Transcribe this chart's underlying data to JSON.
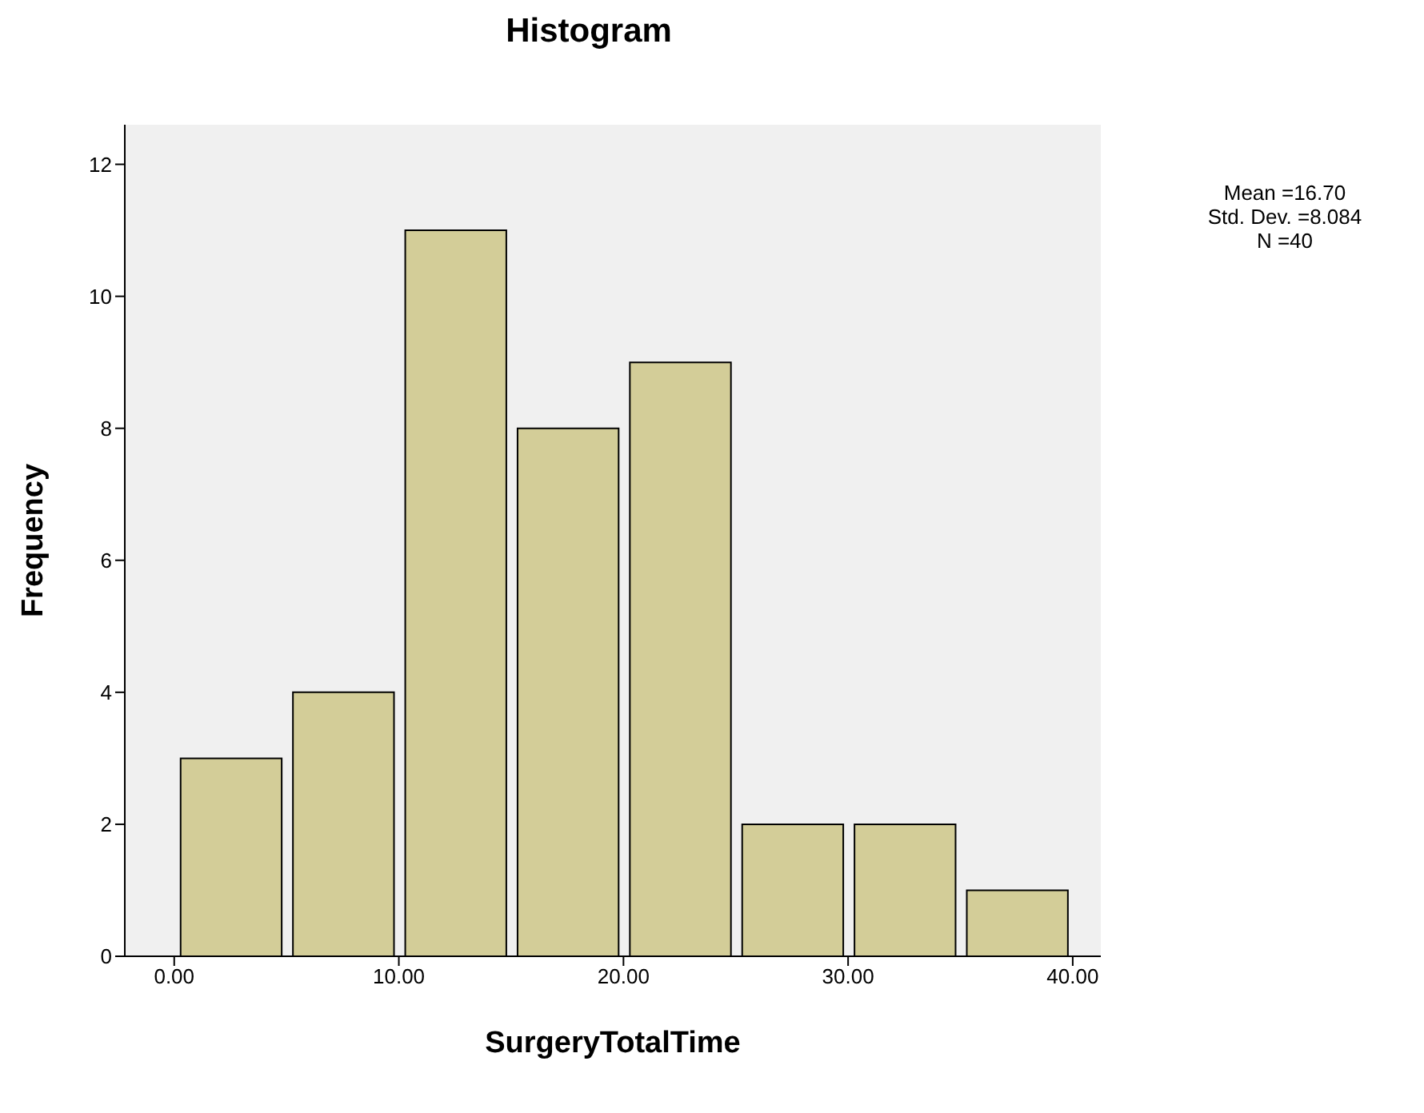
{
  "chart_data": {
    "type": "histogram",
    "title": "Histogram",
    "xlabel": "SurgeryTotalTime",
    "ylabel": "Frequency",
    "bins": [
      0,
      5,
      10,
      15,
      20,
      25,
      30,
      35,
      40
    ],
    "values": [
      3,
      4,
      11,
      8,
      9,
      2,
      2,
      1
    ],
    "color": "#d3cd98",
    "xlim": [
      -2.2,
      41.25
    ],
    "xticks": [
      {
        "value": 0,
        "label": "0.00"
      },
      {
        "value": 10,
        "label": "10.00"
      },
      {
        "value": 20,
        "label": "20.00"
      },
      {
        "value": 30,
        "label": "30.00"
      },
      {
        "value": 40,
        "label": "40.00"
      }
    ],
    "ylim": [
      0,
      12.6
    ],
    "yticks": [
      0,
      2,
      4,
      6,
      8,
      10,
      12
    ],
    "annotations": [
      "Mean =16.70",
      "Std. Dev. =8.084",
      "N =40"
    ]
  }
}
